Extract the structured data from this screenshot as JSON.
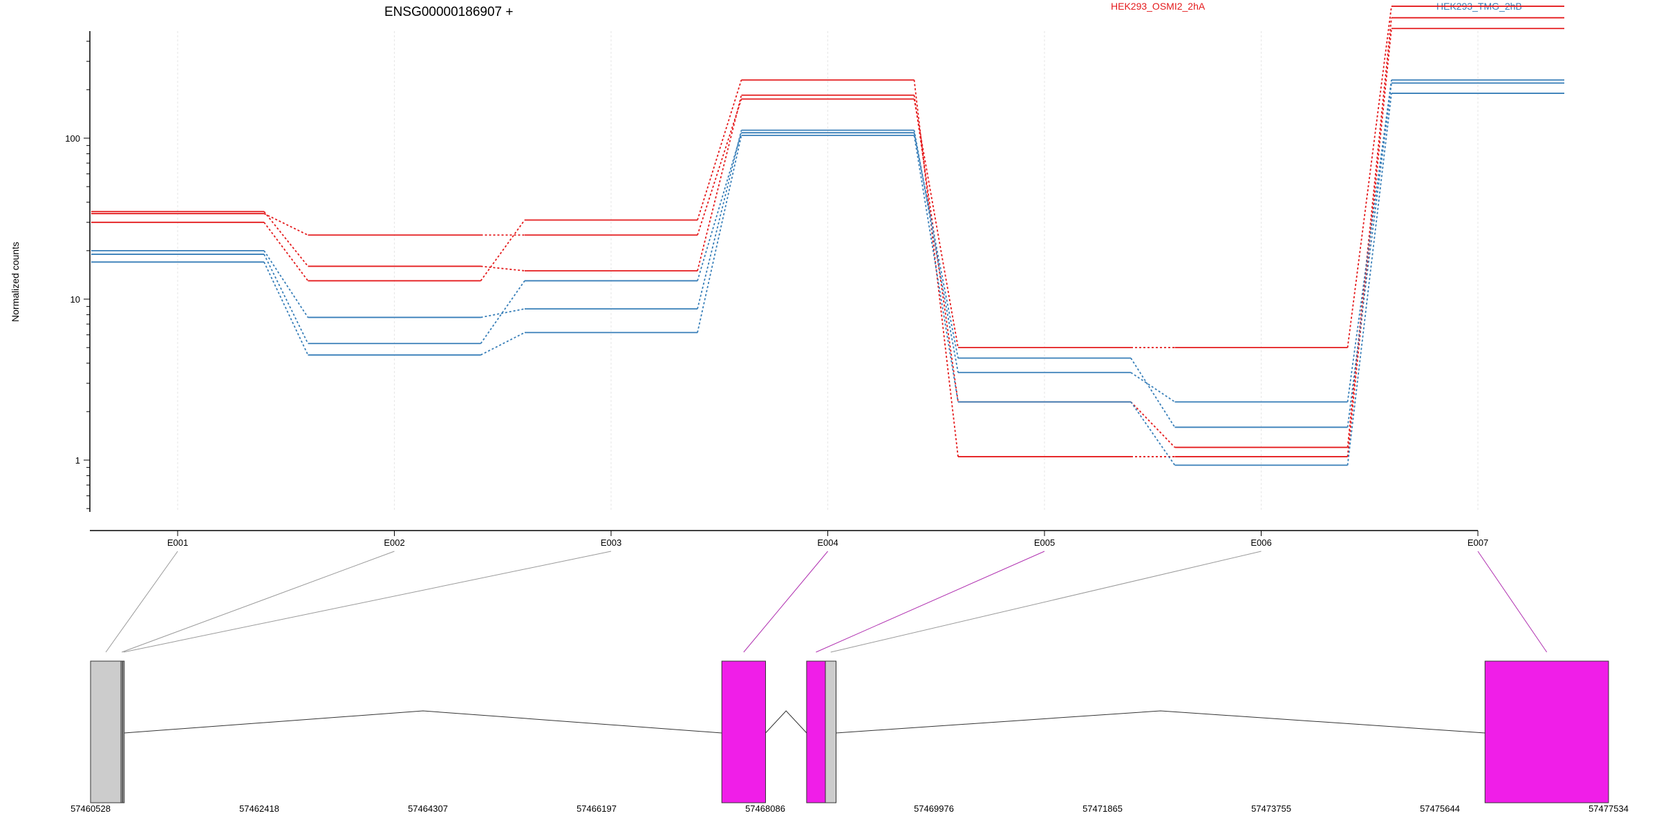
{
  "chart_data": {
    "type": "line",
    "title": "ENSG00000186907 +",
    "ylabel": "Normalized counts",
    "y_scale": "log",
    "y_ticks": [
      1,
      10,
      100
    ],
    "y_tick_labels": [
      "1",
      "10",
      "100"
    ],
    "categories": [
      "E001",
      "E002",
      "E003",
      "E004",
      "E005",
      "E006",
      "E007"
    ],
    "conditions": [
      {
        "name": "HEK293_OSMI2_2hA",
        "color": "#e41a1c"
      },
      {
        "name": "HEK293_TMG_2hB",
        "color": "#377eb8"
      }
    ],
    "series": [
      {
        "condition": "HEK293_OSMI2_2hA",
        "values": [
          35,
          16,
          15,
          185,
          2.3,
          1.2,
          560
        ]
      },
      {
        "condition": "HEK293_OSMI2_2hA",
        "values": [
          34,
          25,
          25,
          175,
          5,
          5,
          660
        ]
      },
      {
        "condition": "HEK293_OSMI2_2hA",
        "values": [
          30,
          13,
          31,
          230,
          1.05,
          1.05,
          480
        ]
      },
      {
        "condition": "HEK293_TMG_2hB",
        "values": [
          20,
          7.7,
          8.7,
          112,
          3.5,
          2.3,
          230
        ]
      },
      {
        "condition": "HEK293_TMG_2hB",
        "values": [
          19,
          5.3,
          13,
          108,
          4.3,
          1.6,
          220
        ]
      },
      {
        "condition": "HEK293_TMG_2hB",
        "values": [
          17,
          4.5,
          6.2,
          104,
          2.3,
          0.93,
          190
        ]
      }
    ],
    "gene_model": {
      "coord_ticks": [
        "57460528",
        "57462418",
        "57464307",
        "57466197",
        "57468086",
        "57469976",
        "57471865",
        "57473755",
        "57475644",
        "57477534"
      ],
      "coord_start": 57460528,
      "coord_end": 57477534,
      "exon_bins": [
        {
          "label": "E001",
          "start": 57460528,
          "end": 57460870,
          "significant": false
        },
        {
          "label": "E002",
          "start": 57460870,
          "end": 57460880,
          "significant": false
        },
        {
          "label": "E003",
          "start": 57460890,
          "end": 57460905,
          "significant": false
        },
        {
          "label": "E004",
          "start": 57467600,
          "end": 57468090,
          "significant": true
        },
        {
          "label": "E005",
          "start": 57468550,
          "end": 57468760,
          "significant": true
        },
        {
          "label": "E006",
          "start": 57468760,
          "end": 57468880,
          "significant": false
        },
        {
          "label": "E007",
          "start": 57476150,
          "end": 57477534,
          "significant": true
        }
      ],
      "introns": [
        [
          57460905,
          57467600
        ],
        [
          57468090,
          57468550
        ],
        [
          57468880,
          57476150
        ]
      ],
      "significant_color": "#f01ee8",
      "nonsignificant_color": "#cccccc"
    }
  }
}
